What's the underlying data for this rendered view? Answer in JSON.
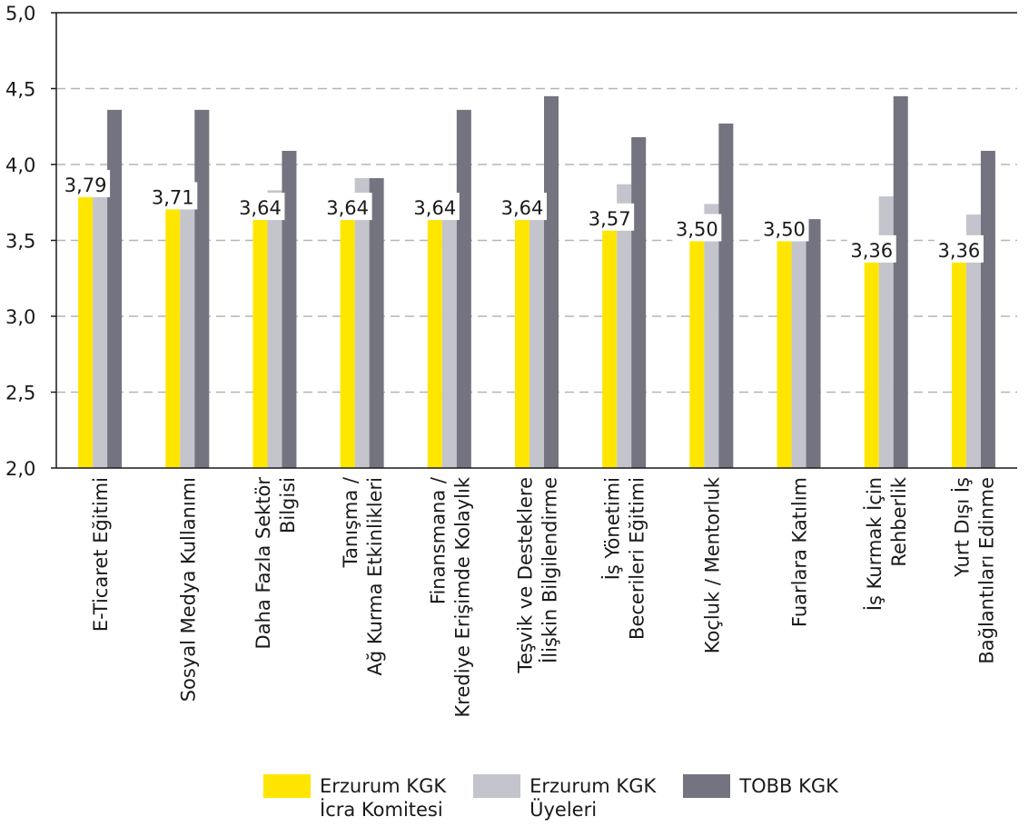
{
  "chart_data": {
    "type": "bar",
    "ylim": [
      2.0,
      5.0
    ],
    "yticks": [
      "2,0",
      "2,5",
      "3,0",
      "3,5",
      "4,0",
      "4,5",
      "5,0"
    ],
    "ytick_values": [
      2.0,
      2.5,
      3.0,
      3.5,
      4.0,
      4.5,
      5.0
    ],
    "grid": true,
    "categories": [
      [
        "E-Ticaret Eğitimi"
      ],
      [
        "Sosyal Medya Kullanımı"
      ],
      [
        "Daha Fazla Sektör",
        "Bilgisi"
      ],
      [
        "Tanışma /",
        "Ağ Kurma Etkinlikleri"
      ],
      [
        "Finansmana /",
        "Krediye Erişimde Kolaylık"
      ],
      [
        "Teşvik ve Desteklere",
        "İlişkin Bilgilendirme"
      ],
      [
        "İş Yönetimi",
        "Becerileri Eğitimi"
      ],
      [
        "Koçluk / Mentorluk"
      ],
      [
        "Fuarlara Katılım"
      ],
      [
        "İş Kurmak İçin",
        "Rehberlik"
      ],
      [
        "Yurt Dışı İş",
        "Bağlantıları Edinme"
      ]
    ],
    "series": [
      {
        "name": "Erzurum KGK\nİcra Komitesi",
        "color": "#FFE600",
        "values": [
          3.79,
          3.71,
          3.64,
          3.64,
          3.64,
          3.64,
          3.57,
          3.5,
          3.5,
          3.36,
          3.36
        ],
        "labels": [
          "3,79",
          "3,71",
          "3,64",
          "3,64",
          "3,64",
          "3,64",
          "3,57",
          "3,50",
          "3,50",
          "3,36",
          "3,36"
        ]
      },
      {
        "name": "Erzurum KGK\nÜyeleri",
        "color": "#C4C4CD",
        "values": [
          3.95,
          3.83,
          3.83,
          3.91,
          3.79,
          3.79,
          3.87,
          3.74,
          3.67,
          3.79,
          3.67
        ]
      },
      {
        "name": "TOBB KGK",
        "color": "#747480",
        "values": [
          4.36,
          4.36,
          4.09,
          3.91,
          4.36,
          4.45,
          4.18,
          4.27,
          3.64,
          4.45,
          4.09
        ]
      }
    ],
    "legend_position": "bottom"
  }
}
